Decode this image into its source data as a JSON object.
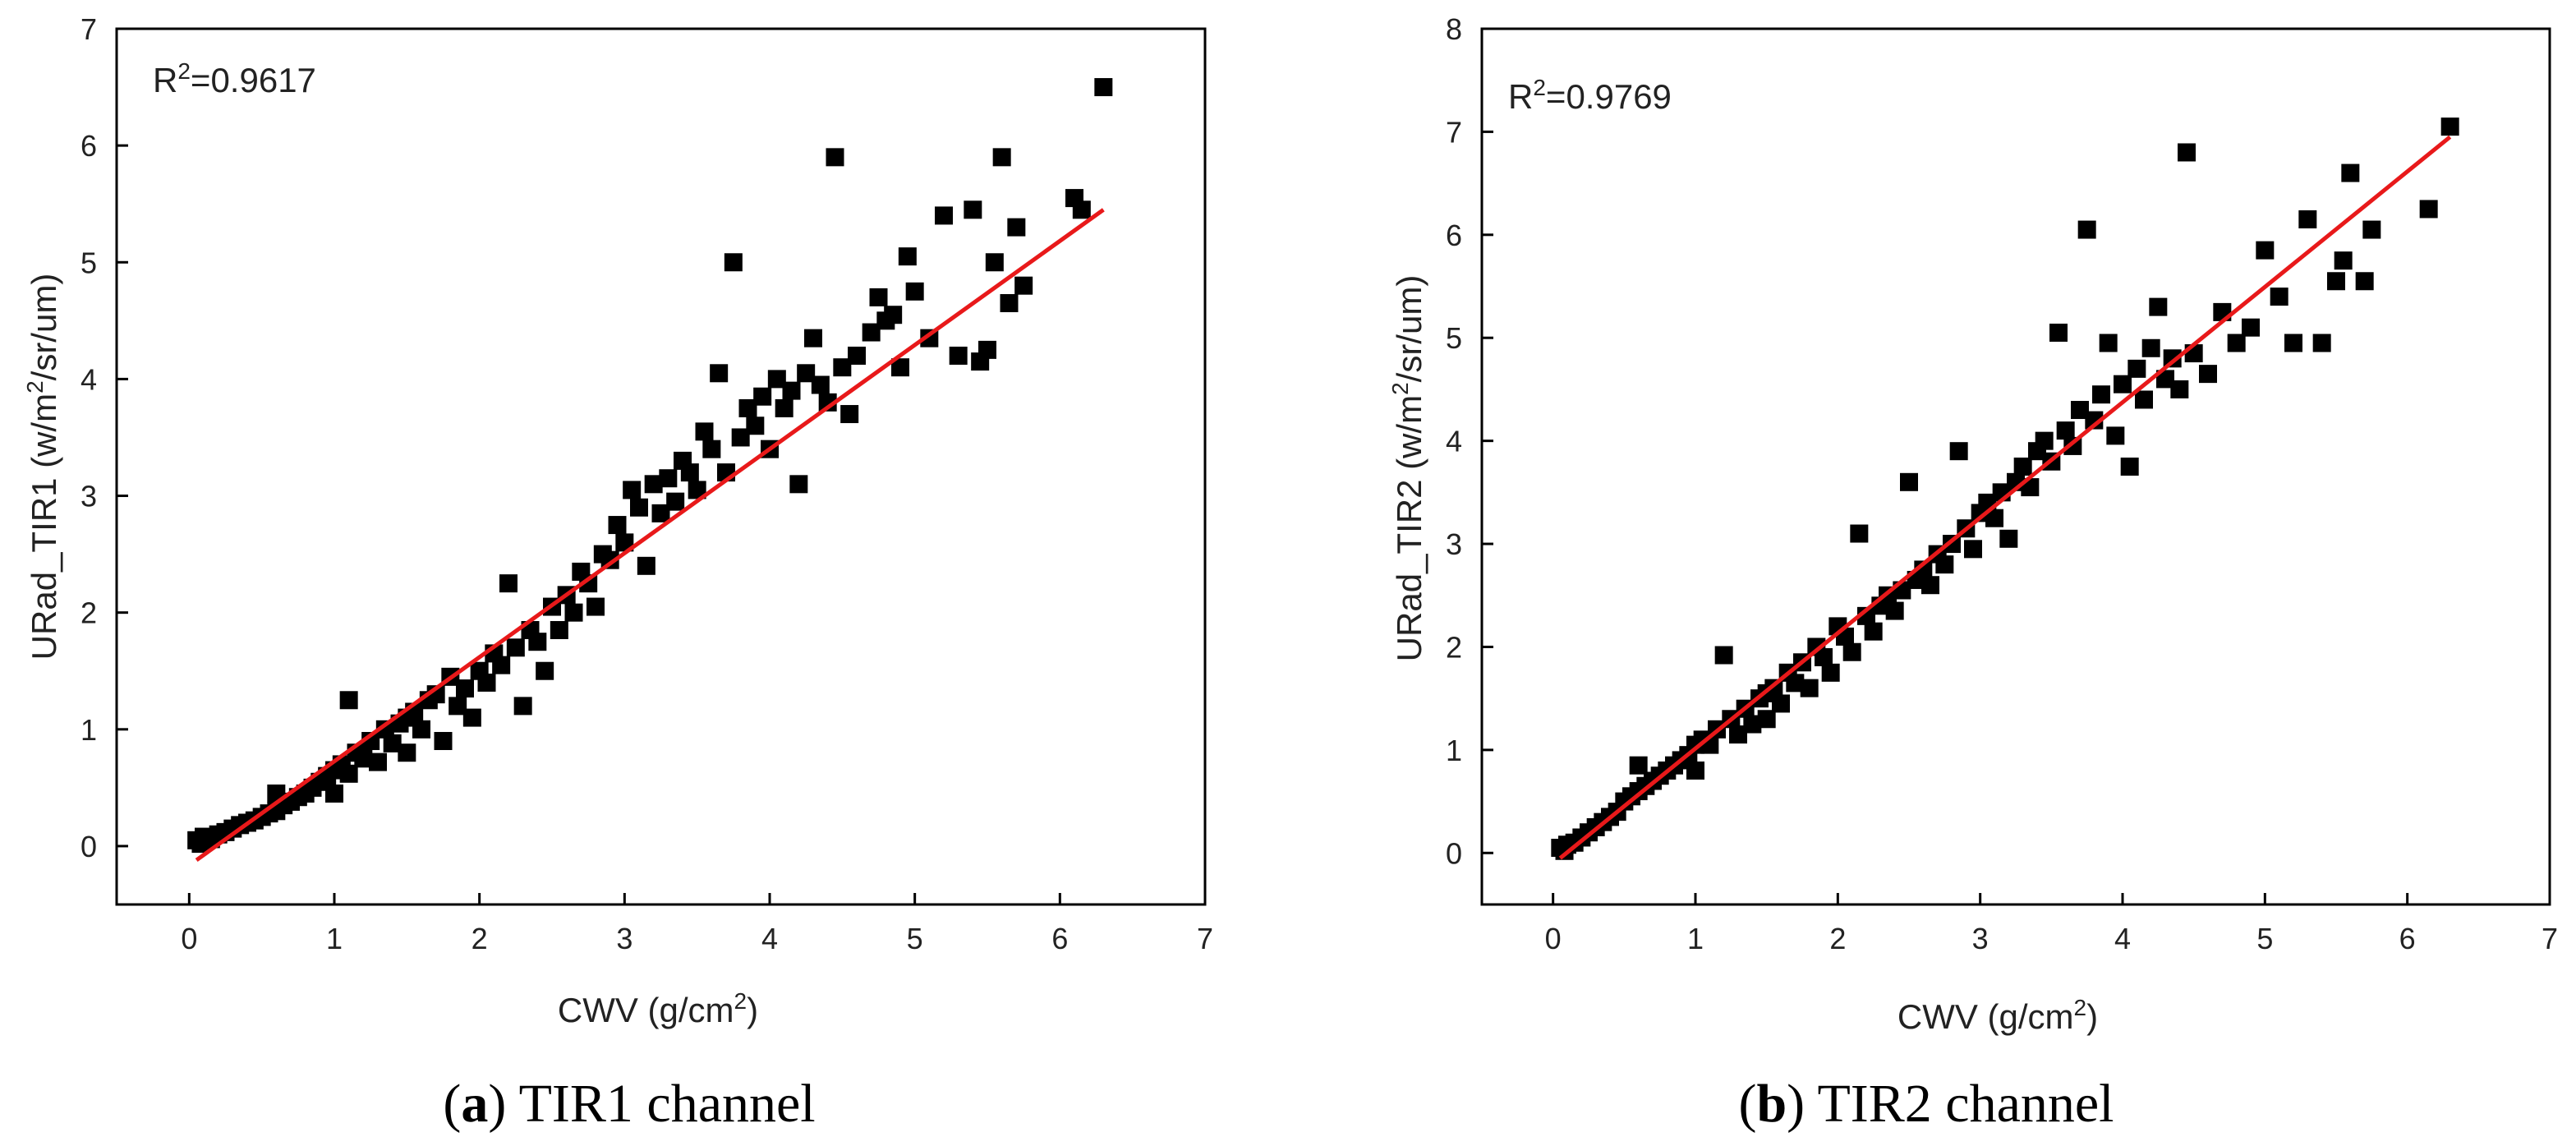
{
  "chart_data": [
    {
      "type": "scatter",
      "caption": {
        "letter": "a",
        "text": "TIR1 channel"
      },
      "r2_label": "R",
      "r2_value": "=0.9617",
      "r2_sup": "2",
      "xlabel": "CWV (g/cm",
      "xlabel_sup": "2",
      "xlabel_end": ")",
      "ylabel_pre": "URad_TIR1 (w/m",
      "ylabel_sup": "2",
      "ylabel_end": "/sr/um)",
      "xlim": [
        -0.5,
        7
      ],
      "ylim": [
        -0.5,
        7
      ],
      "xticks": [
        0,
        1,
        2,
        3,
        4,
        5,
        6,
        7
      ],
      "yticks": [
        0,
        1,
        2,
        3,
        4,
        5,
        6,
        7
      ],
      "fit_line": {
        "color": "#e8191a",
        "x": [
          0.05,
          6.3
        ],
        "y": [
          -0.12,
          5.45
        ]
      },
      "points": [
        [
          0.05,
          0.05
        ],
        [
          0.08,
          0.02
        ],
        [
          0.1,
          0.08
        ],
        [
          0.15,
          0.06
        ],
        [
          0.2,
          0.1
        ],
        [
          0.25,
          0.12
        ],
        [
          0.3,
          0.15
        ],
        [
          0.35,
          0.18
        ],
        [
          0.4,
          0.2
        ],
        [
          0.45,
          0.22
        ],
        [
          0.5,
          0.25
        ],
        [
          0.55,
          0.28
        ],
        [
          0.6,
          0.3
        ],
        [
          0.6,
          0.45
        ],
        [
          0.65,
          0.35
        ],
        [
          0.7,
          0.38
        ],
        [
          0.75,
          0.42
        ],
        [
          0.8,
          0.45
        ],
        [
          0.85,
          0.5
        ],
        [
          0.9,
          0.55
        ],
        [
          0.95,
          0.6
        ],
        [
          1.0,
          0.65
        ],
        [
          1.0,
          0.45
        ],
        [
          1.05,
          0.7
        ],
        [
          1.1,
          0.62
        ],
        [
          1.1,
          1.25
        ],
        [
          1.15,
          0.8
        ],
        [
          1.2,
          0.75
        ],
        [
          1.25,
          0.9
        ],
        [
          1.3,
          0.72
        ],
        [
          1.35,
          1.0
        ],
        [
          1.4,
          0.88
        ],
        [
          1.45,
          1.05
        ],
        [
          1.5,
          1.1
        ],
        [
          1.5,
          0.8
        ],
        [
          1.55,
          1.15
        ],
        [
          1.6,
          1.0
        ],
        [
          1.65,
          1.25
        ],
        [
          1.7,
          1.3
        ],
        [
          1.75,
          0.9
        ],
        [
          1.8,
          1.45
        ],
        [
          1.85,
          1.2
        ],
        [
          1.9,
          1.35
        ],
        [
          1.95,
          1.1
        ],
        [
          2.0,
          1.5
        ],
        [
          2.05,
          1.4
        ],
        [
          2.1,
          1.65
        ],
        [
          2.15,
          1.55
        ],
        [
          2.2,
          2.25
        ],
        [
          2.25,
          1.7
        ],
        [
          2.3,
          1.2
        ],
        [
          2.35,
          1.85
        ],
        [
          2.4,
          1.75
        ],
        [
          2.45,
          1.5
        ],
        [
          2.5,
          2.05
        ],
        [
          2.55,
          1.85
        ],
        [
          2.6,
          2.15
        ],
        [
          2.65,
          2.0
        ],
        [
          2.7,
          2.35
        ],
        [
          2.75,
          2.25
        ],
        [
          2.8,
          2.05
        ],
        [
          2.85,
          2.5
        ],
        [
          2.9,
          2.45
        ],
        [
          2.95,
          2.75
        ],
        [
          3.0,
          2.6
        ],
        [
          3.05,
          3.05
        ],
        [
          3.1,
          2.9
        ],
        [
          3.15,
          2.4
        ],
        [
          3.2,
          3.1
        ],
        [
          3.25,
          2.85
        ],
        [
          3.3,
          3.15
        ],
        [
          3.35,
          2.95
        ],
        [
          3.4,
          3.3
        ],
        [
          3.45,
          3.2
        ],
        [
          3.5,
          3.05
        ],
        [
          3.55,
          3.55
        ],
        [
          3.6,
          3.4
        ],
        [
          3.65,
          4.05
        ],
        [
          3.7,
          3.2
        ],
        [
          3.75,
          5.0
        ],
        [
          3.8,
          3.5
        ],
        [
          3.85,
          3.75
        ],
        [
          3.9,
          3.6
        ],
        [
          3.95,
          3.85
        ],
        [
          4.0,
          3.4
        ],
        [
          4.05,
          4.0
        ],
        [
          4.1,
          3.75
        ],
        [
          4.15,
          3.9
        ],
        [
          4.2,
          3.1
        ],
        [
          4.25,
          4.05
        ],
        [
          4.3,
          4.35
        ],
        [
          4.35,
          3.95
        ],
        [
          4.4,
          3.8
        ],
        [
          4.45,
          5.9
        ],
        [
          4.5,
          4.1
        ],
        [
          4.55,
          3.7
        ],
        [
          4.6,
          4.2
        ],
        [
          4.7,
          4.4
        ],
        [
          4.75,
          4.7
        ],
        [
          4.8,
          4.5
        ],
        [
          4.85,
          4.55
        ],
        [
          4.9,
          4.1
        ],
        [
          4.95,
          5.05
        ],
        [
          5.0,
          4.75
        ],
        [
          5.1,
          4.35
        ],
        [
          5.2,
          5.4
        ],
        [
          5.3,
          4.2
        ],
        [
          5.4,
          5.45
        ],
        [
          5.45,
          4.15
        ],
        [
          5.5,
          4.25
        ],
        [
          5.55,
          5.0
        ],
        [
          5.6,
          5.9
        ],
        [
          5.65,
          4.65
        ],
        [
          5.7,
          5.3
        ],
        [
          5.75,
          4.8
        ],
        [
          6.1,
          5.55
        ],
        [
          6.15,
          5.45
        ],
        [
          6.3,
          6.5
        ]
      ]
    },
    {
      "type": "scatter",
      "caption": {
        "letter": "b",
        "text": "TIR2 channel"
      },
      "r2_label": "R",
      "r2_value": "=0.9769",
      "r2_sup": "2",
      "xlabel": "CWV (g/cm",
      "xlabel_sup": "2",
      "xlabel_end": ")",
      "ylabel_pre": "URad_TIR2 (w/m",
      "ylabel_sup": "2",
      "ylabel_end": "/sr/um)",
      "xlim": [
        -0.5,
        7
      ],
      "ylim": [
        -0.5,
        8
      ],
      "xticks": [
        0,
        1,
        2,
        3,
        4,
        5,
        6,
        7
      ],
      "yticks": [
        0,
        1,
        2,
        3,
        4,
        5,
        6,
        7,
        8
      ],
      "fit_line": {
        "color": "#e8191a",
        "x": [
          0.05,
          6.3
        ],
        "y": [
          -0.05,
          6.95
        ]
      },
      "points": [
        [
          0.05,
          0.05
        ],
        [
          0.08,
          0.02
        ],
        [
          0.1,
          0.08
        ],
        [
          0.15,
          0.1
        ],
        [
          0.2,
          0.15
        ],
        [
          0.25,
          0.2
        ],
        [
          0.3,
          0.25
        ],
        [
          0.35,
          0.3
        ],
        [
          0.4,
          0.35
        ],
        [
          0.45,
          0.4
        ],
        [
          0.5,
          0.5
        ],
        [
          0.55,
          0.55
        ],
        [
          0.6,
          0.6
        ],
        [
          0.6,
          0.85
        ],
        [
          0.65,
          0.65
        ],
        [
          0.7,
          0.7
        ],
        [
          0.75,
          0.75
        ],
        [
          0.8,
          0.8
        ],
        [
          0.85,
          0.85
        ],
        [
          0.9,
          0.9
        ],
        [
          0.95,
          0.95
        ],
        [
          1.0,
          1.05
        ],
        [
          1.0,
          0.8
        ],
        [
          1.05,
          1.1
        ],
        [
          1.1,
          1.05
        ],
        [
          1.15,
          1.2
        ],
        [
          1.2,
          1.92
        ],
        [
          1.25,
          1.3
        ],
        [
          1.3,
          1.15
        ],
        [
          1.35,
          1.4
        ],
        [
          1.4,
          1.25
        ],
        [
          1.45,
          1.5
        ],
        [
          1.5,
          1.55
        ],
        [
          1.5,
          1.3
        ],
        [
          1.55,
          1.6
        ],
        [
          1.6,
          1.45
        ],
        [
          1.65,
          1.75
        ],
        [
          1.7,
          1.65
        ],
        [
          1.75,
          1.85
        ],
        [
          1.8,
          1.6
        ],
        [
          1.85,
          2.0
        ],
        [
          1.9,
          1.9
        ],
        [
          1.95,
          1.75
        ],
        [
          2.0,
          2.2
        ],
        [
          2.05,
          2.1
        ],
        [
          2.1,
          1.95
        ],
        [
          2.15,
          3.1
        ],
        [
          2.2,
          2.3
        ],
        [
          2.25,
          2.15
        ],
        [
          2.3,
          2.4
        ],
        [
          2.35,
          2.5
        ],
        [
          2.4,
          2.35
        ],
        [
          2.45,
          2.55
        ],
        [
          2.5,
          3.6
        ],
        [
          2.55,
          2.65
        ],
        [
          2.6,
          2.75
        ],
        [
          2.65,
          2.6
        ],
        [
          2.7,
          2.9
        ],
        [
          2.75,
          2.8
        ],
        [
          2.8,
          3.0
        ],
        [
          2.85,
          3.9
        ],
        [
          2.9,
          3.15
        ],
        [
          2.95,
          2.95
        ],
        [
          3.0,
          3.3
        ],
        [
          3.05,
          3.4
        ],
        [
          3.1,
          3.25
        ],
        [
          3.15,
          3.5
        ],
        [
          3.2,
          3.05
        ],
        [
          3.25,
          3.6
        ],
        [
          3.3,
          3.75
        ],
        [
          3.35,
          3.55
        ],
        [
          3.4,
          3.9
        ],
        [
          3.45,
          4.0
        ],
        [
          3.5,
          3.8
        ],
        [
          3.55,
          5.05
        ],
        [
          3.6,
          4.1
        ],
        [
          3.65,
          3.95
        ],
        [
          3.7,
          4.3
        ],
        [
          3.75,
          6.05
        ],
        [
          3.8,
          4.2
        ],
        [
          3.85,
          4.45
        ],
        [
          3.9,
          4.95
        ],
        [
          3.95,
          4.05
        ],
        [
          4.0,
          4.55
        ],
        [
          4.05,
          3.75
        ],
        [
          4.1,
          4.7
        ],
        [
          4.15,
          4.4
        ],
        [
          4.2,
          4.9
        ],
        [
          4.25,
          5.3
        ],
        [
          4.3,
          4.6
        ],
        [
          4.35,
          4.8
        ],
        [
          4.4,
          4.5
        ],
        [
          4.45,
          6.8
        ],
        [
          4.5,
          4.85
        ],
        [
          4.6,
          4.65
        ],
        [
          4.7,
          5.25
        ],
        [
          4.8,
          4.95
        ],
        [
          4.9,
          5.1
        ],
        [
          5.0,
          5.85
        ],
        [
          5.1,
          5.4
        ],
        [
          5.2,
          4.95
        ],
        [
          5.3,
          6.15
        ],
        [
          5.4,
          4.95
        ],
        [
          5.5,
          5.55
        ],
        [
          5.55,
          5.75
        ],
        [
          5.6,
          6.6
        ],
        [
          5.7,
          5.55
        ],
        [
          5.75,
          6.05
        ],
        [
          6.15,
          6.25
        ],
        [
          6.3,
          7.05
        ]
      ]
    }
  ]
}
